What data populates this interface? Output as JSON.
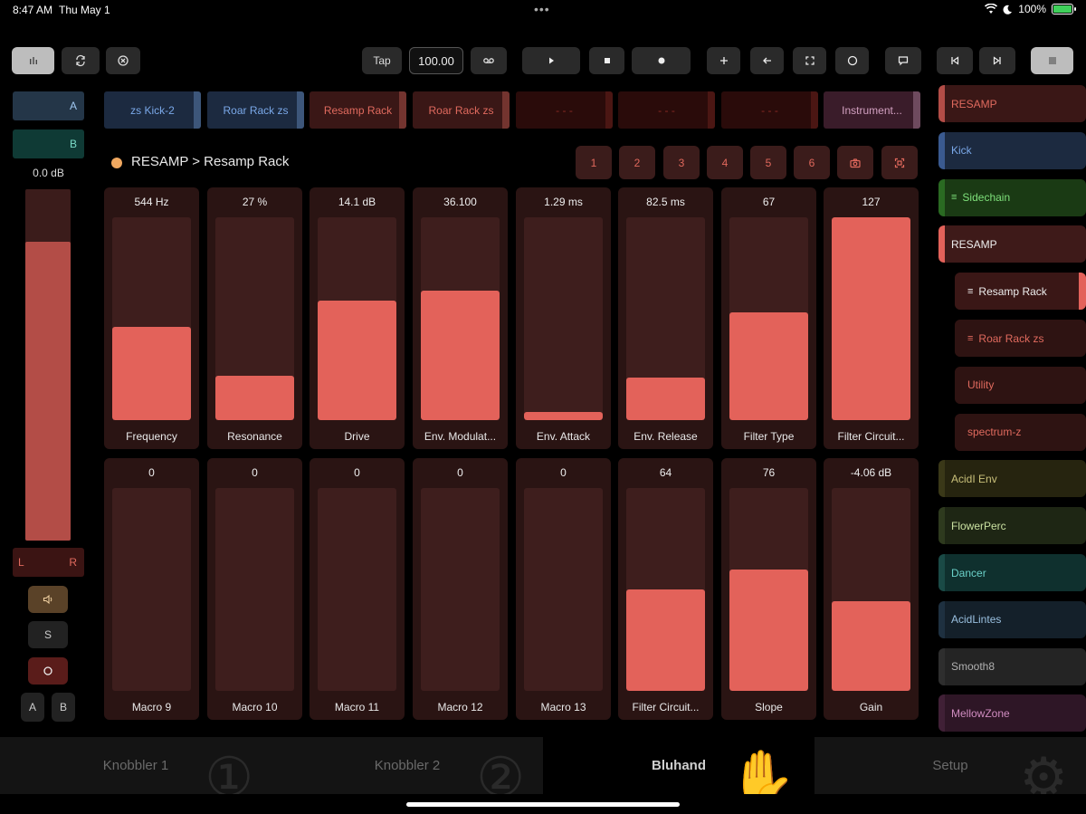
{
  "status": {
    "time": "8:47 AM",
    "date": "Thu May 1",
    "dots": "•••",
    "battery": "100%"
  },
  "toolbar": {
    "tap": "Tap",
    "tempo": "100.00"
  },
  "left": {
    "a_label": "A",
    "b_label": "B",
    "volume": "0.0 dB",
    "volume_level": 0.85,
    "l": "L",
    "r": "R",
    "solo": "S",
    "mini_a": "A",
    "mini_b": "B"
  },
  "tracks": [
    {
      "label": "zs Kick-2",
      "color": "#7aa8e8",
      "bg": "#1c2a40"
    },
    {
      "label": "Roar Rack zs",
      "color": "#7aa8e8",
      "bg": "#1c2a40"
    },
    {
      "label": "Resamp Rack",
      "color": "#e06a5e",
      "bg": "#3a1716"
    },
    {
      "label": "Roar Rack zs",
      "color": "#e06a5e",
      "bg": "#3a1716"
    },
    {
      "label": "- - -",
      "color": "#8a2a24",
      "bg": "#2a0b0a"
    },
    {
      "label": "- - -",
      "color": "#8a2a24",
      "bg": "#2a0b0a"
    },
    {
      "label": "- - -",
      "color": "#8a2a24",
      "bg": "#2a0b0a"
    },
    {
      "label": "Instrument...",
      "color": "#d2a0c0",
      "bg": "#3a1c2a"
    }
  ],
  "breadcrumb": "RESAMP > Resamp Rack",
  "pages": [
    "1",
    "2",
    "3",
    "4",
    "5",
    "6"
  ],
  "params": [
    {
      "value": "544 Hz",
      "name": "Frequency",
      "level": 0.46
    },
    {
      "value": "27 %",
      "name": "Resonance",
      "level": 0.22
    },
    {
      "value": "14.1 dB",
      "name": "Drive",
      "level": 0.59
    },
    {
      "value": "36.100",
      "name": "Env. Modulat...",
      "level": 0.64
    },
    {
      "value": "1.29 ms",
      "name": "Env. Attack",
      "level": 0.04
    },
    {
      "value": "82.5 ms",
      "name": "Env. Release",
      "level": 0.21
    },
    {
      "value": "67",
      "name": "Filter Type",
      "level": 0.53
    },
    {
      "value": "127",
      "name": "Filter Circuit...",
      "level": 1.0
    },
    {
      "value": "0",
      "name": "Macro 9",
      "level": 0.0
    },
    {
      "value": "0",
      "name": "Macro 10",
      "level": 0.0
    },
    {
      "value": "0",
      "name": "Macro 11",
      "level": 0.0
    },
    {
      "value": "0",
      "name": "Macro 12",
      "level": 0.0
    },
    {
      "value": "0",
      "name": "Macro 13",
      "level": 0.0
    },
    {
      "value": "64",
      "name": "Filter Circuit...",
      "level": 0.5
    },
    {
      "value": "76",
      "name": "Slope",
      "level": 0.6
    },
    {
      "value": "-4.06 dB",
      "name": "Gain",
      "level": 0.44
    }
  ],
  "right_list": [
    {
      "label": "RESAMP",
      "color": "#e06a5e",
      "bg": "#3a1716",
      "lead": "#b34d47",
      "indent": false,
      "list": false
    },
    {
      "label": "Kick",
      "color": "#7aa8e8",
      "bg": "#1c2a40",
      "lead": "#3a5a90",
      "indent": false,
      "list": false
    },
    {
      "label": "Sidechain",
      "color": "#7ee07a",
      "bg": "#1a3a14",
      "lead": "#2a6a22",
      "indent": false,
      "list": true
    },
    {
      "label": "RESAMP",
      "color": "#eeeeee",
      "bg": "#3e1a19",
      "lead": "#e3625a",
      "indent": false,
      "list": false
    },
    {
      "label": "Resamp Rack",
      "color": "#eeeeee",
      "bg": "#3a1716",
      "lead": "#3a1716",
      "indent": true,
      "list": true,
      "edge": "#e3625a"
    },
    {
      "label": "Roar Rack zs",
      "color": "#e06a5e",
      "bg": "#2e1312",
      "lead": "#2e1312",
      "indent": true,
      "list": true
    },
    {
      "label": "Utility",
      "color": "#e06a5e",
      "bg": "#2e1312",
      "lead": "#2e1312",
      "indent": true,
      "list": false
    },
    {
      "label": "spectrum-z",
      "color": "#e06a5e",
      "bg": "#2e1312",
      "lead": "#2e1312",
      "indent": true,
      "list": false
    },
    {
      "label": "AcidI Env",
      "color": "#c9c07a",
      "bg": "#26240f",
      "lead": "#3a3818",
      "indent": false,
      "list": false
    },
    {
      "label": "FlowerPerc",
      "color": "#c9e0a0",
      "bg": "#1e2614",
      "lead": "#2e3a1e",
      "indent": false,
      "list": false
    },
    {
      "label": "Dancer",
      "color": "#6ad0c8",
      "bg": "#0f302e",
      "lead": "#1a4a46",
      "indent": false,
      "list": false
    },
    {
      "label": "AcidLintes",
      "color": "#9ac0e0",
      "bg": "#14202a",
      "lead": "#1e3040",
      "indent": false,
      "list": false
    },
    {
      "label": "Smooth8",
      "color": "#b0b0b0",
      "bg": "#242424",
      "lead": "#2e2e2e",
      "indent": false,
      "list": false
    },
    {
      "label": "MellowZone",
      "color": "#d08cc0",
      "bg": "#2e1626",
      "lead": "#402036",
      "indent": false,
      "list": false
    }
  ],
  "bottom_tabs": [
    {
      "label": "Knobbler 1",
      "icon": "①"
    },
    {
      "label": "Knobbler 2",
      "icon": "②"
    },
    {
      "label": "Bluhand",
      "icon": "✋"
    },
    {
      "label": "Setup",
      "icon": "⚙"
    }
  ]
}
